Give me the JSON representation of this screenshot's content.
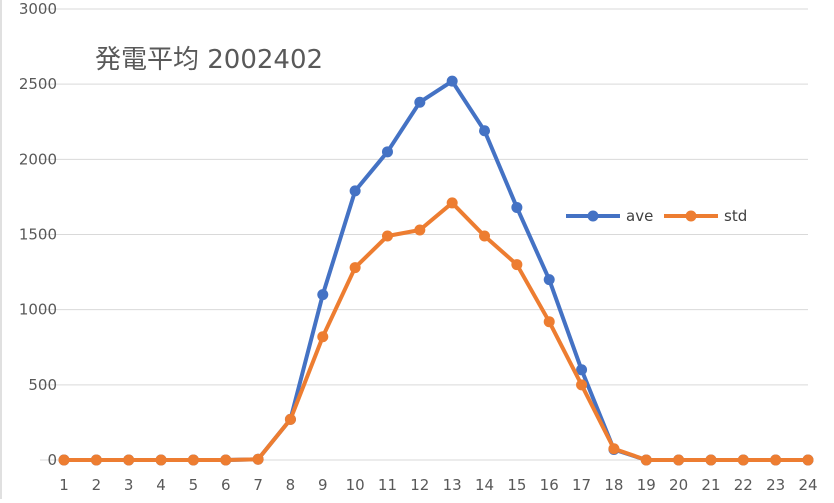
{
  "chart_data": {
    "type": "line",
    "title": "発電平均 2002402",
    "xlabel": "",
    "ylabel": "",
    "categories": [
      "1",
      "2",
      "3",
      "4",
      "5",
      "6",
      "7",
      "8",
      "9",
      "10",
      "11",
      "12",
      "13",
      "14",
      "15",
      "16",
      "17",
      "18",
      "19",
      "20",
      "21",
      "22",
      "23",
      "24"
    ],
    "ylim": [
      0,
      3000
    ],
    "yticks": [
      0,
      500,
      1000,
      1500,
      2000,
      2500,
      3000
    ],
    "grid": true,
    "legend_position": "right",
    "series": [
      {
        "name": "ave",
        "color": "#4472C4",
        "values": [
          0,
          0,
          0,
          0,
          0,
          0,
          5,
          270,
          1100,
          1790,
          2050,
          2380,
          2520,
          2190,
          1680,
          1200,
          600,
          70,
          0,
          0,
          0,
          0,
          0,
          0
        ]
      },
      {
        "name": "std",
        "color": "#ED7D31",
        "values": [
          0,
          0,
          0,
          0,
          0,
          0,
          5,
          270,
          820,
          1280,
          1490,
          1530,
          1710,
          1490,
          1300,
          920,
          500,
          75,
          0,
          0,
          0,
          0,
          0,
          0
        ]
      }
    ]
  }
}
